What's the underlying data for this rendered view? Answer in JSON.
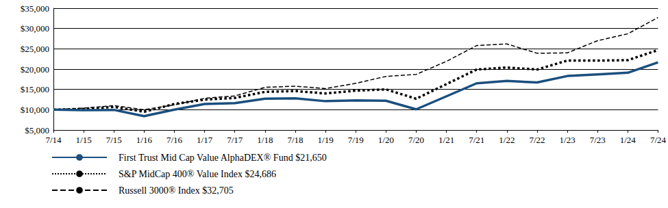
{
  "chart_data": {
    "type": "line",
    "categories": [
      "7/14",
      "1/15",
      "7/15",
      "1/16",
      "7/16",
      "1/17",
      "7/17",
      "1/18",
      "7/18",
      "1/19",
      "7/19",
      "1/20",
      "7/20",
      "1/21",
      "7/21",
      "1/22",
      "7/22",
      "1/23",
      "7/23",
      "1/24",
      "7/24"
    ],
    "series": [
      {
        "name": "First Trust Mid Cap Value AlphaDEX® Fund $21,650",
        "color": "#1b4f7e",
        "line_style": "solid",
        "values": [
          10000,
          9900,
          9950,
          8400,
          10000,
          11400,
          11600,
          12700,
          12800,
          12100,
          12300,
          12200,
          10100,
          13300,
          16500,
          17100,
          16700,
          18300,
          18700,
          19100,
          21650
        ]
      },
      {
        "name": "S&P MidCap 400® Value Index $24,686",
        "color": "#000000",
        "line_style": "dotted",
        "values": [
          10000,
          10200,
          10700,
          9500,
          11400,
          12500,
          12900,
          14400,
          14600,
          14000,
          14700,
          15000,
          12700,
          16300,
          19900,
          20400,
          19900,
          22100,
          22100,
          22200,
          24686
        ]
      },
      {
        "name": "Russell 3000® Index $32,705",
        "color": "#000000",
        "line_style": "dashed",
        "values": [
          10000,
          10400,
          11000,
          10000,
          11200,
          12800,
          13400,
          15500,
          15800,
          15200,
          16500,
          18200,
          18700,
          21900,
          25800,
          26200,
          23900,
          24000,
          27000,
          28700,
          32705
        ]
      }
    ],
    "ylim": [
      5000,
      35000
    ],
    "yticks": [
      {
        "value": 5000,
        "label": "$5,000"
      },
      {
        "value": 10000,
        "label": "$10,000"
      },
      {
        "value": 15000,
        "label": "$15,000"
      },
      {
        "value": 20000,
        "label": "$20,000"
      },
      {
        "value": 25000,
        "label": "$25,000"
      },
      {
        "value": 30000,
        "label": "$30,000"
      },
      {
        "value": 35000,
        "label": "$35,000"
      }
    ],
    "grid": true,
    "legend": "bottom"
  }
}
